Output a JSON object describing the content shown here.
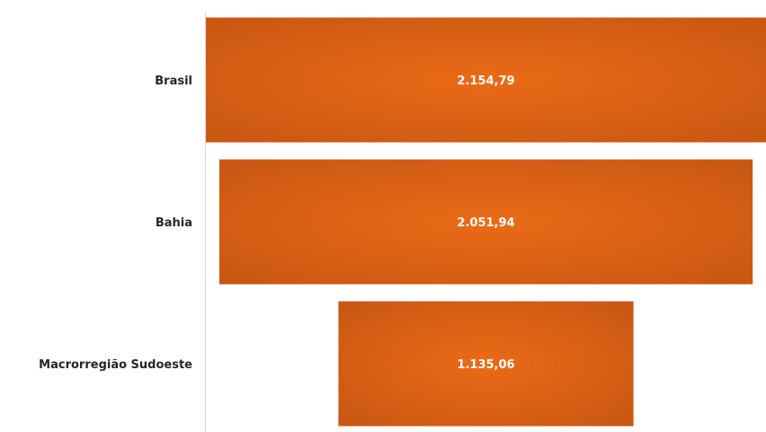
{
  "chart_data": {
    "type": "bar",
    "subtype": "funnel",
    "orientation": "horizontal",
    "categories": [
      "Brasil",
      "Bahia",
      "Macrorregião Sudoeste"
    ],
    "values": [
      2154.79,
      2051.94,
      1135.06
    ],
    "value_labels": [
      "2.154,79",
      "2.051,94",
      "1.135,06"
    ],
    "title": "",
    "xlabel": "",
    "ylabel": "",
    "grid": false,
    "legend": false,
    "colors": {
      "bar_center": "#ea6b16",
      "bar_edge": "#c55512",
      "axis_line": "#d9d9d9",
      "category_text": "#262626",
      "value_text": "#ffffff"
    }
  }
}
